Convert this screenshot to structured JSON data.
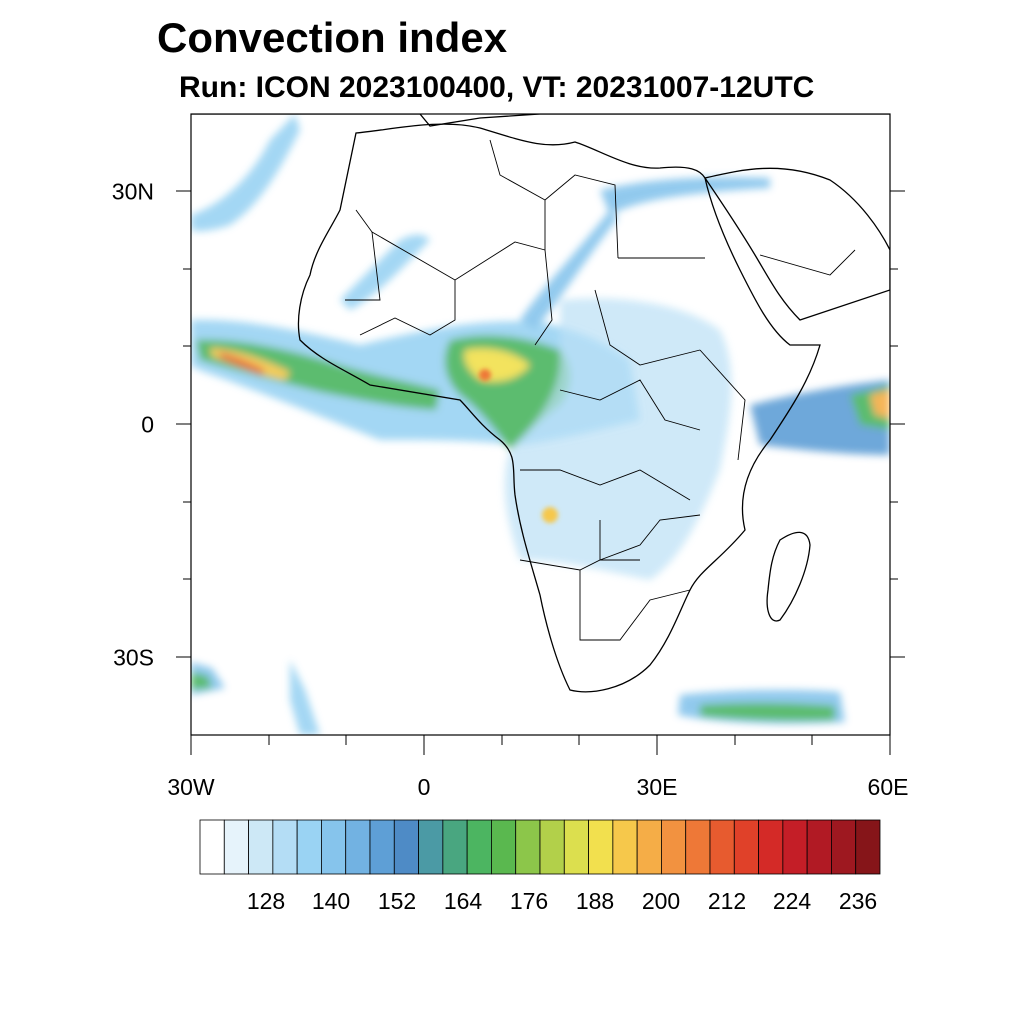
{
  "title": "Convection index",
  "subtitle": "Run: ICON 2023100400,  VT: 20231007-12UTC",
  "lat_labels": [
    "30N",
    "0",
    "30S"
  ],
  "lon_labels": [
    "30W",
    "0",
    "30E",
    "60E"
  ],
  "colorbar": {
    "labels": [
      "128",
      "140",
      "152",
      "164",
      "176",
      "188",
      "200",
      "212",
      "224",
      "236"
    ],
    "colors": [
      "#ffffff",
      "#e6f3fb",
      "#cde8f6",
      "#b4ddf5",
      "#9ad3f3",
      "#86c4ec",
      "#72b2e2",
      "#5e9fd6",
      "#4e8bc6",
      "#4b9aa5",
      "#49a680",
      "#4cb561",
      "#5ab84f",
      "#8cc64a",
      "#b2d04a",
      "#dcdf4e",
      "#f2e04e",
      "#f6c84b",
      "#f5ad47",
      "#f29240",
      "#ee7837",
      "#e75b2f",
      "#e04129",
      "#d42a27",
      "#c41e27",
      "#b11a24",
      "#9e1820",
      "#861519"
    ]
  },
  "chart_data": {
    "type": "heatmap",
    "title": "Convection index",
    "subtitle": "Run: ICON 2023100400,  VT: 20231007-12UTC",
    "xlim": [
      -30,
      60
    ],
    "ylim": [
      -40,
      40
    ],
    "x_ticks": [
      -30,
      0,
      30,
      60
    ],
    "x_tick_labels": [
      "30W",
      "0",
      "30E",
      "60E"
    ],
    "y_ticks": [
      30,
      0,
      -30
    ],
    "y_tick_labels": [
      "30N",
      "0",
      "30S"
    ],
    "colorbar_ticks": [
      128,
      140,
      152,
      164,
      176,
      188,
      200,
      212,
      224,
      236
    ],
    "colorbar_step": 4
  }
}
